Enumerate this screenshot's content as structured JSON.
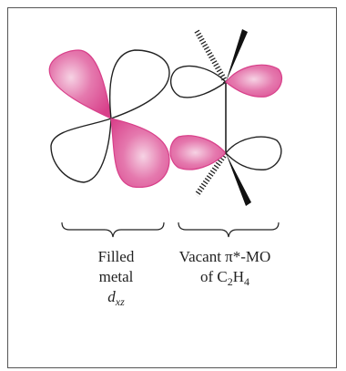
{
  "colors": {
    "filled_lobe": "#d8408a",
    "filled_lobe_highlight": "#f6d3e4",
    "outline": "#222222",
    "frame": "#555555"
  },
  "captions": {
    "metal": {
      "line1": "Filled",
      "line2": "metal",
      "orbital_letter": "d",
      "orbital_subscript": "xz"
    },
    "ethylene": {
      "line1": "Vacant π*-MO",
      "line2_prefix": "of C",
      "sub1": "2",
      "mid": "H",
      "sub2": "4"
    }
  }
}
